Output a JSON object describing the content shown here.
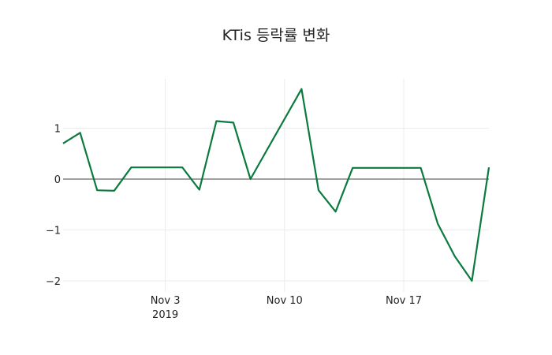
{
  "title": "KTis 등락률 변화",
  "colors": {
    "line": "#0b7a3e",
    "grid": "#ebebeb",
    "zeroline": "#444444"
  },
  "chart_data": {
    "type": "line",
    "title": "KTis 등락률 변화",
    "xlabel": "",
    "ylabel": "",
    "ylim": [
      -2.2,
      2.0
    ],
    "x_tick_labels": [
      {
        "date": "2019-11-03",
        "label": "Nov 3",
        "sublabel": "2019"
      },
      {
        "date": "2019-11-10",
        "label": "Nov 10",
        "sublabel": ""
      },
      {
        "date": "2019-11-17",
        "label": "Nov 17",
        "sublabel": ""
      }
    ],
    "y_ticks": [
      1,
      0,
      -1,
      -2
    ],
    "y_tick_labels": [
      "1",
      "0",
      "−1",
      "−2"
    ],
    "grid": true,
    "legend": null,
    "series": [
      {
        "name": "등락률",
        "x": [
          "2019-10-28",
          "2019-10-29",
          "2019-10-30",
          "2019-10-31",
          "2019-11-01",
          "2019-11-02",
          "2019-11-03",
          "2019-11-04",
          "2019-11-05",
          "2019-11-06",
          "2019-11-07",
          "2019-11-08",
          "2019-11-11",
          "2019-11-12",
          "2019-11-13",
          "2019-11-14",
          "2019-11-15",
          "2019-11-16",
          "2019-11-17",
          "2019-11-18",
          "2019-11-19",
          "2019-11-20",
          "2019-11-21",
          "2019-11-22"
        ],
        "values": [
          0.7,
          0.91,
          -0.22,
          -0.23,
          0.23,
          0.23,
          0.23,
          0.23,
          -0.21,
          1.14,
          1.11,
          0.0,
          1.77,
          -0.22,
          -0.64,
          0.22,
          0.22,
          0.22,
          0.22,
          0.22,
          -0.88,
          -1.52,
          -2.0,
          0.23
        ]
      }
    ]
  }
}
